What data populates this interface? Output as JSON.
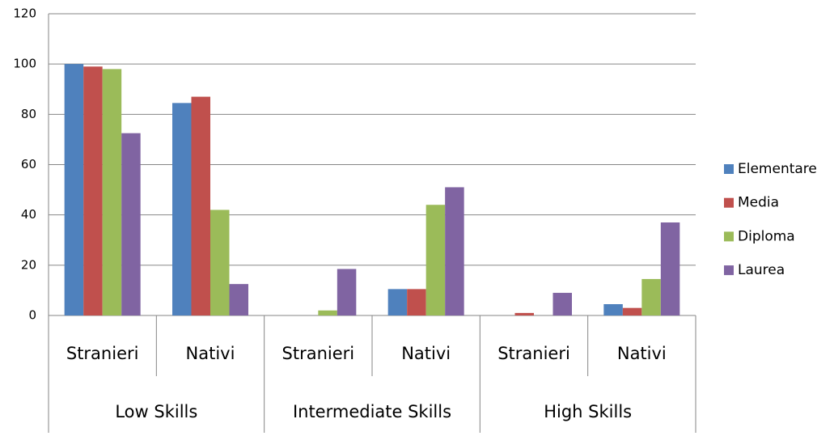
{
  "chart_data": {
    "type": "bar",
    "categories": [
      "Stranieri",
      "Nativi",
      "Stranieri",
      "Nativi",
      "Stranieri",
      "Nativi"
    ],
    "category_groups": [
      "Low Skills",
      "Intermediate Skills",
      "High Skills"
    ],
    "series": [
      {
        "name": "Elementare",
        "color": "#4f81bd",
        "values": [
          100,
          84.5,
          0,
          10.5,
          0,
          4.5
        ]
      },
      {
        "name": "Media",
        "color": "#c0504d",
        "values": [
          99,
          87,
          0,
          10.5,
          1,
          3
        ]
      },
      {
        "name": "Diploma",
        "color": "#9bbb59",
        "values": [
          98,
          42,
          2,
          44,
          0,
          14.5
        ]
      },
      {
        "name": "Laurea",
        "color": "#8064a2",
        "values": [
          72.5,
          12.5,
          18.5,
          51,
          9,
          37
        ]
      }
    ],
    "ylim": [
      0,
      120
    ],
    "yticks": [
      0,
      20,
      40,
      60,
      80,
      100,
      120
    ],
    "grid": true,
    "legend": "right"
  }
}
